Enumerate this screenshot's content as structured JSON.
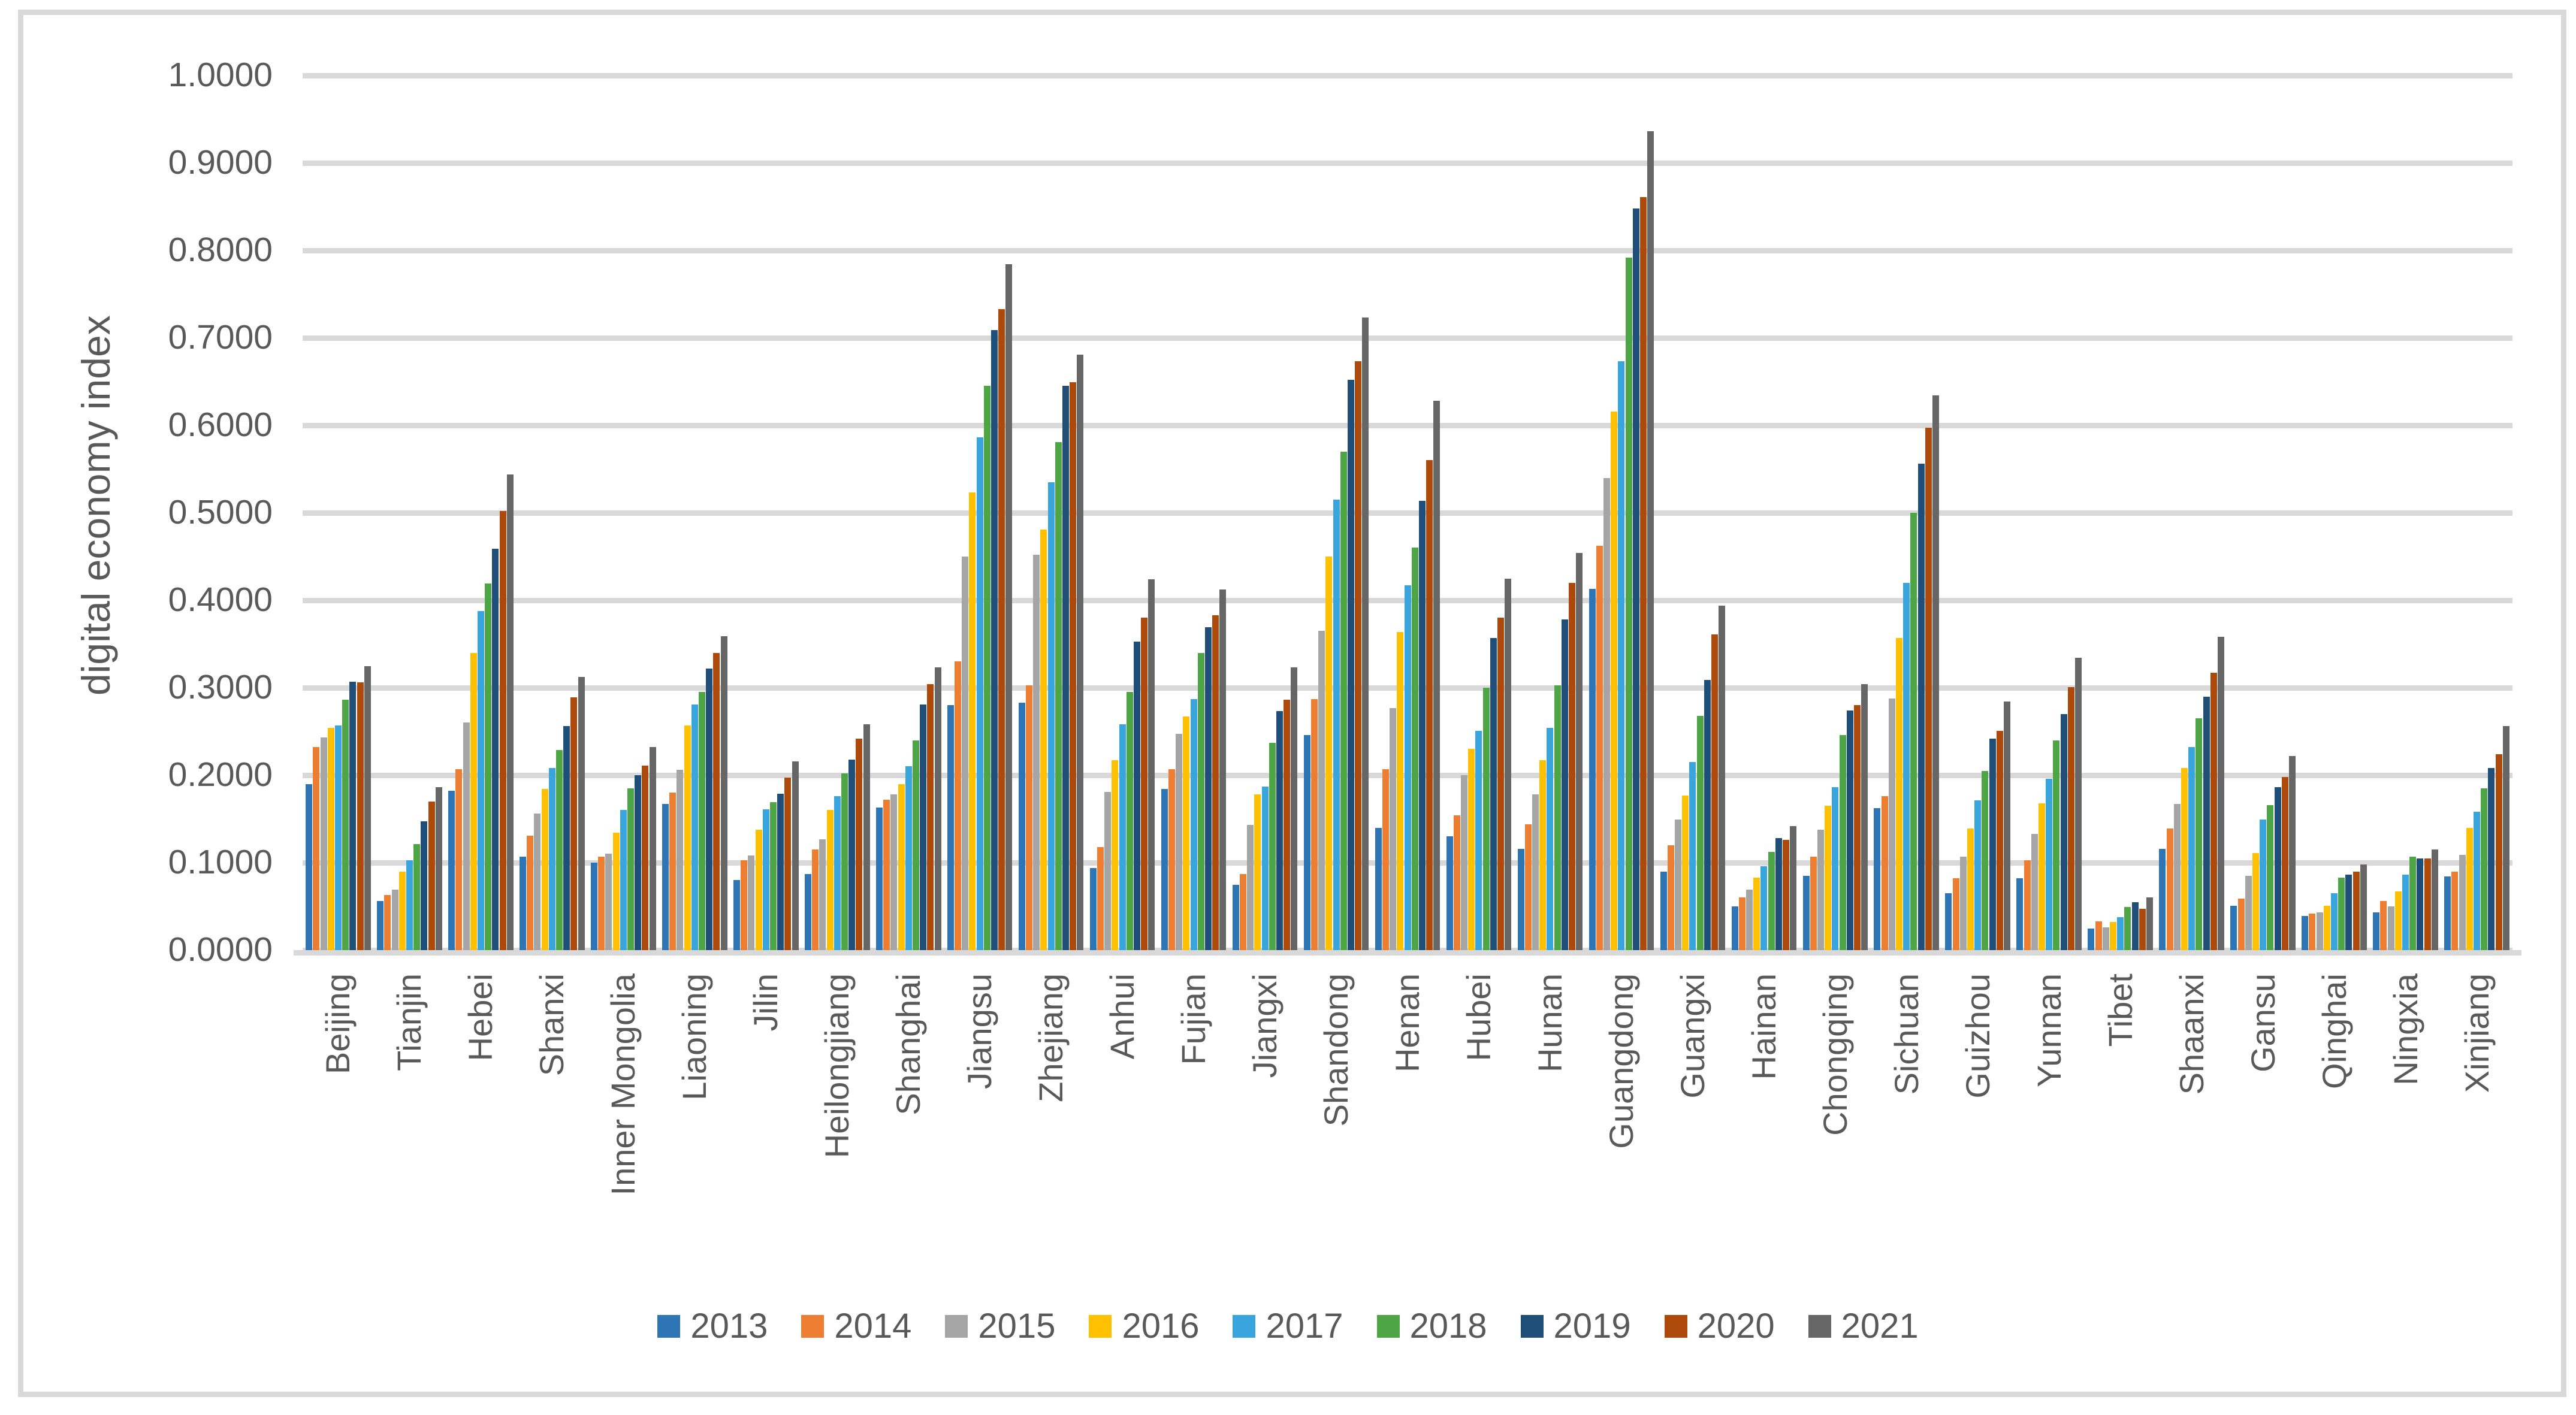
{
  "chart_data": {
    "type": "bar",
    "title": "",
    "xlabel": "",
    "ylabel": "digital economy index",
    "ylim": [
      0,
      1
    ],
    "grid": true,
    "legend_position": "bottom",
    "yticks": [
      "0.0000",
      "0.1000",
      "0.2000",
      "0.3000",
      "0.4000",
      "0.5000",
      "0.6000",
      "0.7000",
      "0.8000",
      "0.9000",
      "1.0000"
    ],
    "categories": [
      "Beijing",
      "Tianjin",
      "Hebei",
      "Shanxi",
      "Inner Mongolia",
      "Liaoning",
      "Jilin",
      "Heilongjiang",
      "Shanghai",
      "Jiangsu",
      "Zhejiang",
      "Anhui",
      "Fujian",
      "Jiangxi",
      "Shandong",
      "Henan",
      "Hubei",
      "Hunan",
      "Guangdong",
      "Guangxi",
      "Hainan",
      "Chongqing",
      "Sichuan",
      "Guizhou",
      "Yunnan",
      "Tibet",
      "Shaanxi",
      "Gansu",
      "Qinghai",
      "Ningxia",
      "Xinjiang"
    ],
    "series": [
      {
        "name": "2013",
        "color": "#2E75B6",
        "values": [
          0.19,
          0.056,
          0.182,
          0.107,
          0.1,
          0.167,
          0.08,
          0.087,
          0.163,
          0.28,
          0.283,
          0.094,
          0.184,
          0.075,
          0.246,
          0.14,
          0.13,
          0.116,
          0.413,
          0.09,
          0.05,
          0.085,
          0.162,
          0.065,
          0.082,
          0.025,
          0.116,
          0.051,
          0.039,
          0.043,
          0.084
        ]
      },
      {
        "name": "2014",
        "color": "#ED7D31",
        "values": [
          0.232,
          0.063,
          0.207,
          0.131,
          0.107,
          0.18,
          0.103,
          0.115,
          0.172,
          0.33,
          0.303,
          0.118,
          0.207,
          0.087,
          0.287,
          0.207,
          0.154,
          0.144,
          0.462,
          0.12,
          0.06,
          0.107,
          0.176,
          0.082,
          0.103,
          0.033,
          0.139,
          0.059,
          0.042,
          0.056,
          0.09
        ]
      },
      {
        "name": "2015",
        "color": "#A5A5A5",
        "values": [
          0.243,
          0.069,
          0.26,
          0.156,
          0.11,
          0.206,
          0.108,
          0.127,
          0.178,
          0.45,
          0.452,
          0.181,
          0.247,
          0.143,
          0.365,
          0.277,
          0.2,
          0.178,
          0.54,
          0.149,
          0.069,
          0.138,
          0.288,
          0.107,
          0.133,
          0.026,
          0.167,
          0.085,
          0.043,
          0.05,
          0.109
        ]
      },
      {
        "name": "2016",
        "color": "#FFC000",
        "values": [
          0.254,
          0.09,
          0.34,
          0.184,
          0.134,
          0.257,
          0.138,
          0.16,
          0.19,
          0.523,
          0.481,
          0.217,
          0.267,
          0.178,
          0.45,
          0.364,
          0.23,
          0.217,
          0.616,
          0.177,
          0.083,
          0.165,
          0.357,
          0.139,
          0.168,
          0.032,
          0.208,
          0.111,
          0.051,
          0.067,
          0.14
        ]
      },
      {
        "name": "2017",
        "color": "#38A5DC",
        "values": [
          0.257,
          0.103,
          0.388,
          0.208,
          0.16,
          0.281,
          0.161,
          0.176,
          0.21,
          0.586,
          0.535,
          0.258,
          0.287,
          0.187,
          0.515,
          0.417,
          0.251,
          0.254,
          0.673,
          0.215,
          0.096,
          0.186,
          0.42,
          0.171,
          0.196,
          0.038,
          0.232,
          0.149,
          0.065,
          0.086,
          0.158
        ]
      },
      {
        "name": "2018",
        "color": "#4EA546",
        "values": [
          0.286,
          0.121,
          0.419,
          0.229,
          0.185,
          0.295,
          0.169,
          0.202,
          0.24,
          0.645,
          0.581,
          0.295,
          0.34,
          0.237,
          0.57,
          0.46,
          0.3,
          0.303,
          0.792,
          0.268,
          0.112,
          0.246,
          0.5,
          0.205,
          0.24,
          0.049,
          0.265,
          0.166,
          0.083,
          0.107,
          0.185
        ]
      },
      {
        "name": "2019",
        "color": "#1F4E79",
        "values": [
          0.307,
          0.147,
          0.459,
          0.256,
          0.2,
          0.322,
          0.179,
          0.218,
          0.281,
          0.709,
          0.645,
          0.353,
          0.369,
          0.273,
          0.652,
          0.514,
          0.357,
          0.378,
          0.848,
          0.309,
          0.128,
          0.274,
          0.556,
          0.242,
          0.27,
          0.055,
          0.29,
          0.186,
          0.086,
          0.105,
          0.208
        ]
      },
      {
        "name": "2020",
        "color": "#AC490B",
        "values": [
          0.306,
          0.17,
          0.502,
          0.289,
          0.211,
          0.34,
          0.197,
          0.242,
          0.304,
          0.733,
          0.649,
          0.38,
          0.383,
          0.286,
          0.673,
          0.56,
          0.38,
          0.42,
          0.861,
          0.361,
          0.126,
          0.28,
          0.597,
          0.251,
          0.301,
          0.047,
          0.317,
          0.198,
          0.09,
          0.105,
          0.224
        ]
      },
      {
        "name": "2021",
        "color": "#666666",
        "values": [
          0.325,
          0.186,
          0.544,
          0.312,
          0.232,
          0.359,
          0.216,
          0.258,
          0.323,
          0.784,
          0.681,
          0.424,
          0.412,
          0.323,
          0.723,
          0.628,
          0.425,
          0.454,
          0.936,
          0.394,
          0.142,
          0.304,
          0.634,
          0.284,
          0.334,
          0.06,
          0.358,
          0.222,
          0.098,
          0.115,
          0.256
        ]
      }
    ]
  }
}
